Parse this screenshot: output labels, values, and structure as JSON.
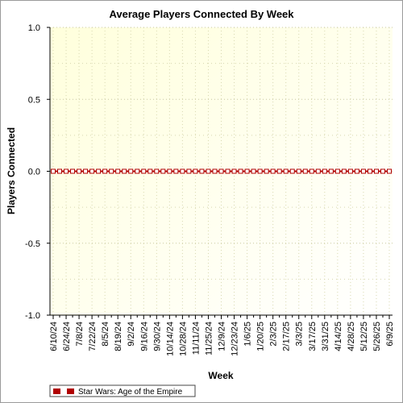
{
  "chart_data": {
    "type": "line",
    "title": "Average Players Connected By Week",
    "xlabel": "Week",
    "ylabel": "Players Connected",
    "ylim": [
      -1.0,
      1.0
    ],
    "yticks": [
      "1.0",
      "0.5",
      "0.0",
      "-0.5",
      "-1.0"
    ],
    "ytick_values": [
      1.0,
      0.5,
      0.0,
      -0.5,
      -1.0
    ],
    "x_tick_labels": [
      "6/10/24",
      "6/24/24",
      "7/8/24",
      "7/22/24",
      "8/5/24",
      "8/19/24",
      "9/2/24",
      "9/16/24",
      "9/30/24",
      "10/14/24",
      "10/28/24",
      "11/11/24",
      "11/25/24",
      "12/9/24",
      "12/23/24",
      "1/6/25",
      "1/20/25",
      "2/3/25",
      "2/17/25",
      "3/3/25",
      "3/17/25",
      "3/31/25",
      "4/14/25",
      "4/28/25",
      "5/12/25",
      "5/26/25",
      "6/9/25"
    ],
    "x": [
      "6/10/24",
      "6/17/24",
      "6/24/24",
      "7/1/24",
      "7/8/24",
      "7/15/24",
      "7/22/24",
      "7/29/24",
      "8/5/24",
      "8/12/24",
      "8/19/24",
      "8/26/24",
      "9/2/24",
      "9/9/24",
      "9/16/24",
      "9/23/24",
      "9/30/24",
      "10/7/24",
      "10/14/24",
      "10/21/24",
      "10/28/24",
      "11/4/24",
      "11/11/24",
      "11/18/24",
      "11/25/24",
      "12/2/24",
      "12/9/24",
      "12/16/24",
      "12/23/24",
      "12/30/24",
      "1/6/25",
      "1/13/25",
      "1/20/25",
      "1/27/25",
      "2/3/25",
      "2/10/25",
      "2/17/25",
      "2/24/25",
      "3/3/25",
      "3/10/25",
      "3/17/25",
      "3/24/25",
      "3/31/25",
      "4/7/25",
      "4/14/25",
      "4/21/25",
      "4/28/25",
      "5/5/25",
      "5/12/25",
      "5/19/25",
      "5/26/25",
      "6/2/25",
      "6/9/25"
    ],
    "series": [
      {
        "name": "Star Wars: Age of the Empire",
        "color": "#b00000",
        "values": [
          0,
          0,
          0,
          0,
          0,
          0,
          0,
          0,
          0,
          0,
          0,
          0,
          0,
          0,
          0,
          0,
          0,
          0,
          0,
          0,
          0,
          0,
          0,
          0,
          0,
          0,
          0,
          0,
          0,
          0,
          0,
          0,
          0,
          0,
          0,
          0,
          0,
          0,
          0,
          0,
          0,
          0,
          0,
          0,
          0,
          0,
          0,
          0,
          0,
          0,
          0,
          0,
          0
        ]
      }
    ],
    "grid": true,
    "legend_position": "bottom-left",
    "plot_background": [
      "#ffffdc",
      "#ffffff"
    ]
  }
}
